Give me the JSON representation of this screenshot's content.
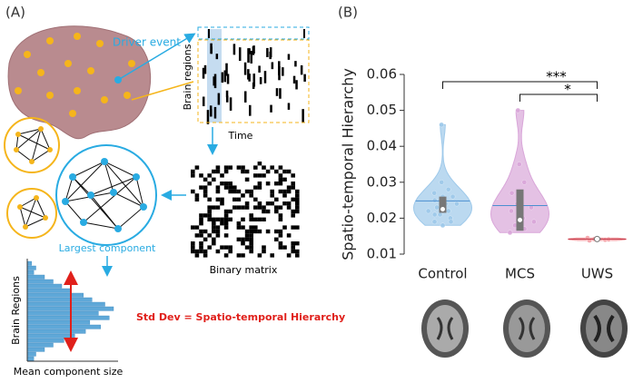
{
  "panel_a": {
    "label": "(A)",
    "driver_event": "Driver event",
    "brain_regions": "Brain regions",
    "time": "Time",
    "binary_matrix": "Binary matrix",
    "largest_component": "Largest component",
    "hist_ylabel": "Brain Regions",
    "hist_xlabel": "Mean component size",
    "std_dev": "Std Dev = Spatio-temporal Hierarchy",
    "histogram": [
      2,
      4,
      3,
      8,
      12,
      16,
      20,
      26,
      30,
      36,
      40,
      33,
      38,
      29,
      34,
      27,
      22,
      17,
      12,
      8,
      4,
      3
    ]
  },
  "chart_data": {
    "type": "violin",
    "label": "(B)",
    "ylabel": "Spatio-temporal Hierarchy",
    "categories": [
      "Control",
      "MCS",
      "UWS"
    ],
    "ylim": [
      0.01,
      0.06
    ],
    "yticks": [
      0.01,
      0.02,
      0.03,
      0.04,
      0.05,
      0.06
    ],
    "groups": [
      {
        "color": "#9ec9ea",
        "median": 0.0225,
        "q1": 0.0215,
        "q3": 0.026,
        "mean": 0.0248,
        "points": [
          0.046,
          0.03,
          0.028,
          0.027,
          0.026,
          0.026,
          0.025,
          0.024,
          0.024,
          0.023,
          0.022,
          0.022,
          0.021,
          0.02,
          0.019,
          0.018,
          0.019,
          0.021
        ]
      },
      {
        "color": "#d9a6d9",
        "median": 0.0195,
        "q1": 0.0165,
        "q3": 0.028,
        "mean": 0.0235,
        "points": [
          0.05,
          0.035,
          0.03,
          0.027,
          0.025,
          0.023,
          0.022,
          0.02,
          0.019,
          0.018,
          0.017,
          0.016,
          0.024
        ]
      },
      {
        "color": "#f4a3a8",
        "median": 0.0142,
        "q1": 0.014,
        "q3": 0.0144,
        "mean": 0.0142,
        "points": [
          0.0145,
          0.0142,
          0.014,
          0.0138,
          0.0143,
          0.0141
        ]
      }
    ],
    "significance": [
      {
        "groups": [
          0,
          2
        ],
        "label": "***"
      },
      {
        "groups": [
          1,
          2
        ],
        "label": "*"
      }
    ]
  }
}
